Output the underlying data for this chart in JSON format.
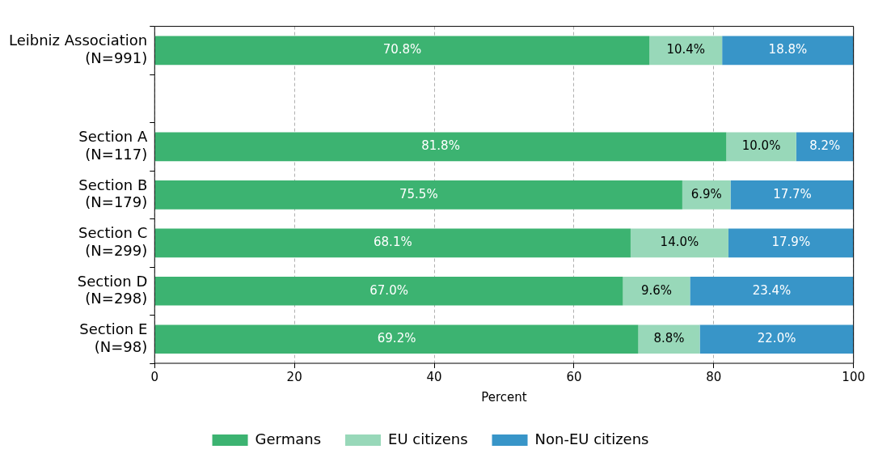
{
  "chart_data": {
    "type": "bar",
    "orientation": "horizontal",
    "stacked": true,
    "categories": [
      "Leibniz Association\n(N=991)",
      null,
      "Section A\n(N=117)",
      "Section B\n(N=179)",
      "Section C\n(N=299)",
      "Section D\n(N=298)",
      "Section E\n(N=98)"
    ],
    "series": [
      {
        "name": "Germans",
        "color": "#3cb371",
        "values": [
          70.8,
          null,
          81.8,
          75.5,
          68.1,
          67.0,
          69.2
        ],
        "value_labels": [
          "70.8%",
          null,
          "81.8%",
          "75.5%",
          "68.1%",
          "67.0%",
          "69.2%"
        ]
      },
      {
        "name": "EU citizens",
        "color": "#98d8b9",
        "values": [
          10.4,
          null,
          10.0,
          6.9,
          14.0,
          9.6,
          8.8
        ],
        "value_labels": [
          "10.4%",
          null,
          "10.0%",
          "6.9%",
          "14.0%",
          "9.6%",
          "8.8%"
        ]
      },
      {
        "name": "Non-EU citizens",
        "color": "#3895c8",
        "values": [
          18.8,
          null,
          8.2,
          17.7,
          17.9,
          23.4,
          22.0
        ],
        "value_labels": [
          "18.8%",
          null,
          "8.2%",
          "17.7%",
          "17.9%",
          "23.4%",
          "22.0%"
        ]
      }
    ],
    "xlim": [
      0,
      100
    ],
    "xticks": [
      0,
      20,
      40,
      60,
      80,
      100
    ],
    "xlabel": "Percent",
    "grid": "x",
    "legend": "bottom"
  }
}
